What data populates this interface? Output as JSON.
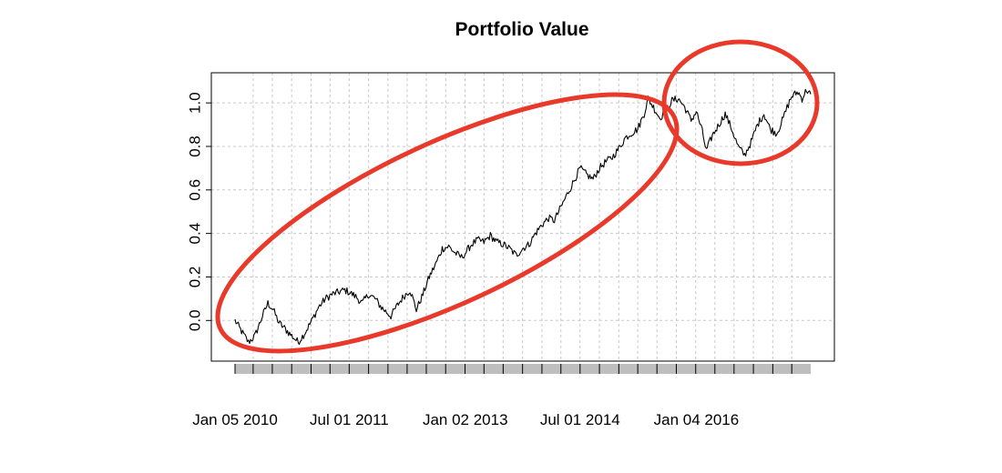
{
  "chart_data": {
    "type": "line",
    "title": "Portfolio Value",
    "xlabel": "",
    "ylabel": "",
    "x_range": [
      "2010-01-05",
      "2017-06-30"
    ],
    "ylim": [
      -0.12,
      1.08
    ],
    "y_ticks": [
      "0.0",
      "0.2",
      "0.4",
      "0.6",
      "0.8",
      "1.0"
    ],
    "x_tick_labels": [
      {
        "date": "2010-01-05",
        "label": "Jan 05 2010"
      },
      {
        "date": "2011-07-01",
        "label": "Jul 01 2011"
      },
      {
        "date": "2013-01-02",
        "label": "Jan 02 2013"
      },
      {
        "date": "2014-07-01",
        "label": "Jul 01 2014"
      },
      {
        "date": "2016-01-04",
        "label": "Jan 04 2016"
      }
    ],
    "grid": true,
    "series": [
      {
        "color": "#000000",
        "points": [
          [
            "2010-01-05",
            0.0
          ],
          [
            "2010-02-05",
            -0.05
          ],
          [
            "2010-03-10",
            -0.1
          ],
          [
            "2010-04-10",
            -0.07
          ],
          [
            "2010-05-15",
            0.02
          ],
          [
            "2010-06-10",
            0.08
          ],
          [
            "2010-07-05",
            0.05
          ],
          [
            "2010-08-01",
            -0.01
          ],
          [
            "2010-09-01",
            -0.04
          ],
          [
            "2010-10-01",
            -0.07
          ],
          [
            "2010-11-01",
            -0.1
          ],
          [
            "2010-12-01",
            -0.06
          ],
          [
            "2011-01-05",
            0.0
          ],
          [
            "2011-02-05",
            0.06
          ],
          [
            "2011-03-10",
            0.1
          ],
          [
            "2011-04-10",
            0.12
          ],
          [
            "2011-05-10",
            0.13
          ],
          [
            "2011-06-10",
            0.14
          ],
          [
            "2011-07-01",
            0.13
          ],
          [
            "2011-08-01",
            0.11
          ],
          [
            "2011-09-01",
            0.08
          ],
          [
            "2011-10-01",
            0.12
          ],
          [
            "2011-11-01",
            0.1
          ],
          [
            "2011-12-01",
            0.06
          ],
          [
            "2012-01-15",
            0.02
          ],
          [
            "2012-02-15",
            0.07
          ],
          [
            "2012-03-15",
            0.11
          ],
          [
            "2012-04-15",
            0.14
          ],
          [
            "2012-05-15",
            0.05
          ],
          [
            "2012-06-15",
            0.12
          ],
          [
            "2012-07-15",
            0.2
          ],
          [
            "2012-08-15",
            0.26
          ],
          [
            "2012-09-15",
            0.33
          ],
          [
            "2012-10-15",
            0.34
          ],
          [
            "2012-11-15",
            0.31
          ],
          [
            "2012-12-15",
            0.29
          ],
          [
            "2013-01-02",
            0.31
          ],
          [
            "2013-02-01",
            0.35
          ],
          [
            "2013-03-01",
            0.37
          ],
          [
            "2013-04-01",
            0.36
          ],
          [
            "2013-05-01",
            0.39
          ],
          [
            "2013-06-01",
            0.36
          ],
          [
            "2013-07-01",
            0.35
          ],
          [
            "2013-08-01",
            0.33
          ],
          [
            "2013-09-01",
            0.3
          ],
          [
            "2013-10-01",
            0.33
          ],
          [
            "2013-11-01",
            0.35
          ],
          [
            "2013-12-01",
            0.4
          ],
          [
            "2014-01-01",
            0.44
          ],
          [
            "2014-02-01",
            0.47
          ],
          [
            "2014-03-01",
            0.46
          ],
          [
            "2014-04-01",
            0.52
          ],
          [
            "2014-05-01",
            0.58
          ],
          [
            "2014-06-01",
            0.64
          ],
          [
            "2014-07-01",
            0.7
          ],
          [
            "2014-08-01",
            0.67
          ],
          [
            "2014-09-01",
            0.65
          ],
          [
            "2014-10-01",
            0.7
          ],
          [
            "2014-11-01",
            0.73
          ],
          [
            "2014-12-01",
            0.75
          ],
          [
            "2015-01-01",
            0.79
          ],
          [
            "2015-02-01",
            0.84
          ],
          [
            "2015-03-01",
            0.86
          ],
          [
            "2015-04-01",
            0.88
          ],
          [
            "2015-05-01",
            0.95
          ],
          [
            "2015-05-20",
            1.02
          ],
          [
            "2015-06-15",
            0.98
          ],
          [
            "2015-07-15",
            0.93
          ],
          [
            "2015-08-15",
            0.97
          ],
          [
            "2015-09-10",
            1.01
          ],
          [
            "2015-10-10",
            1.02
          ],
          [
            "2015-11-10",
            0.98
          ],
          [
            "2015-12-10",
            0.92
          ],
          [
            "2016-01-04",
            0.96
          ],
          [
            "2016-02-01",
            0.87
          ],
          [
            "2016-02-20",
            0.78
          ],
          [
            "2016-03-20",
            0.85
          ],
          [
            "2016-04-20",
            0.9
          ],
          [
            "2016-05-20",
            0.95
          ],
          [
            "2016-06-20",
            0.88
          ],
          [
            "2016-07-20",
            0.8
          ],
          [
            "2016-08-20",
            0.76
          ],
          [
            "2016-09-20",
            0.82
          ],
          [
            "2016-10-20",
            0.9
          ],
          [
            "2016-11-20",
            0.95
          ],
          [
            "2016-12-20",
            0.88
          ],
          [
            "2017-01-20",
            0.86
          ],
          [
            "2017-02-20",
            0.93
          ],
          [
            "2017-03-10",
            0.98
          ],
          [
            "2017-04-01",
            1.03
          ],
          [
            "2017-05-01",
            1.05
          ],
          [
            "2017-05-20",
            1.02
          ],
          [
            "2017-06-10",
            1.06
          ],
          [
            "2017-06-30",
            1.04
          ]
        ]
      }
    ],
    "annotations": [
      {
        "type": "ellipse",
        "color": "#e8392a",
        "description_target": "2010-2015 rising trend"
      },
      {
        "type": "ellipse",
        "color": "#e8392a",
        "description_target": "2015-2017 plateau"
      }
    ]
  }
}
